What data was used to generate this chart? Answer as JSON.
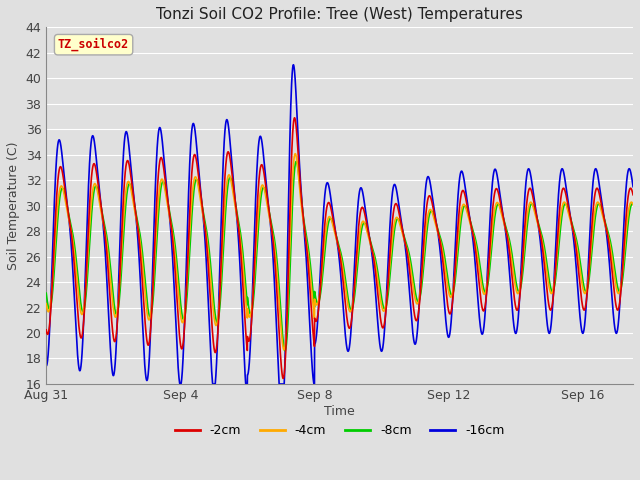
{
  "title": "Tonzi Soil CO2 Profile: Tree (West) Temperatures",
  "xlabel": "Time",
  "ylabel": "Soil Temperature (C)",
  "ylim": [
    16,
    44
  ],
  "yticks": [
    16,
    18,
    20,
    22,
    24,
    26,
    28,
    30,
    32,
    34,
    36,
    38,
    40,
    42,
    44
  ],
  "bg_color": "#e0e0e0",
  "plot_bg_color": "#e0e0e0",
  "grid_color": "#ffffff",
  "legend_label": "TZ_soilco2",
  "legend_bg": "#ffffcc",
  "legend_edge": "#aaaaaa",
  "series_colors": [
    "#dd0000",
    "#ffaa00",
    "#00cc00",
    "#0000dd"
  ],
  "series_labels": [
    "-2cm",
    "-4cm",
    "-8cm",
    "-16cm"
  ],
  "x_tick_positions": [
    0,
    4,
    8,
    12,
    16
  ],
  "x_tick_labels": [
    "Aug 31",
    "Sep 4",
    "Sep 8",
    "Sep 12",
    "Sep 16"
  ],
  "figsize": [
    6.4,
    4.8
  ],
  "dpi": 100
}
